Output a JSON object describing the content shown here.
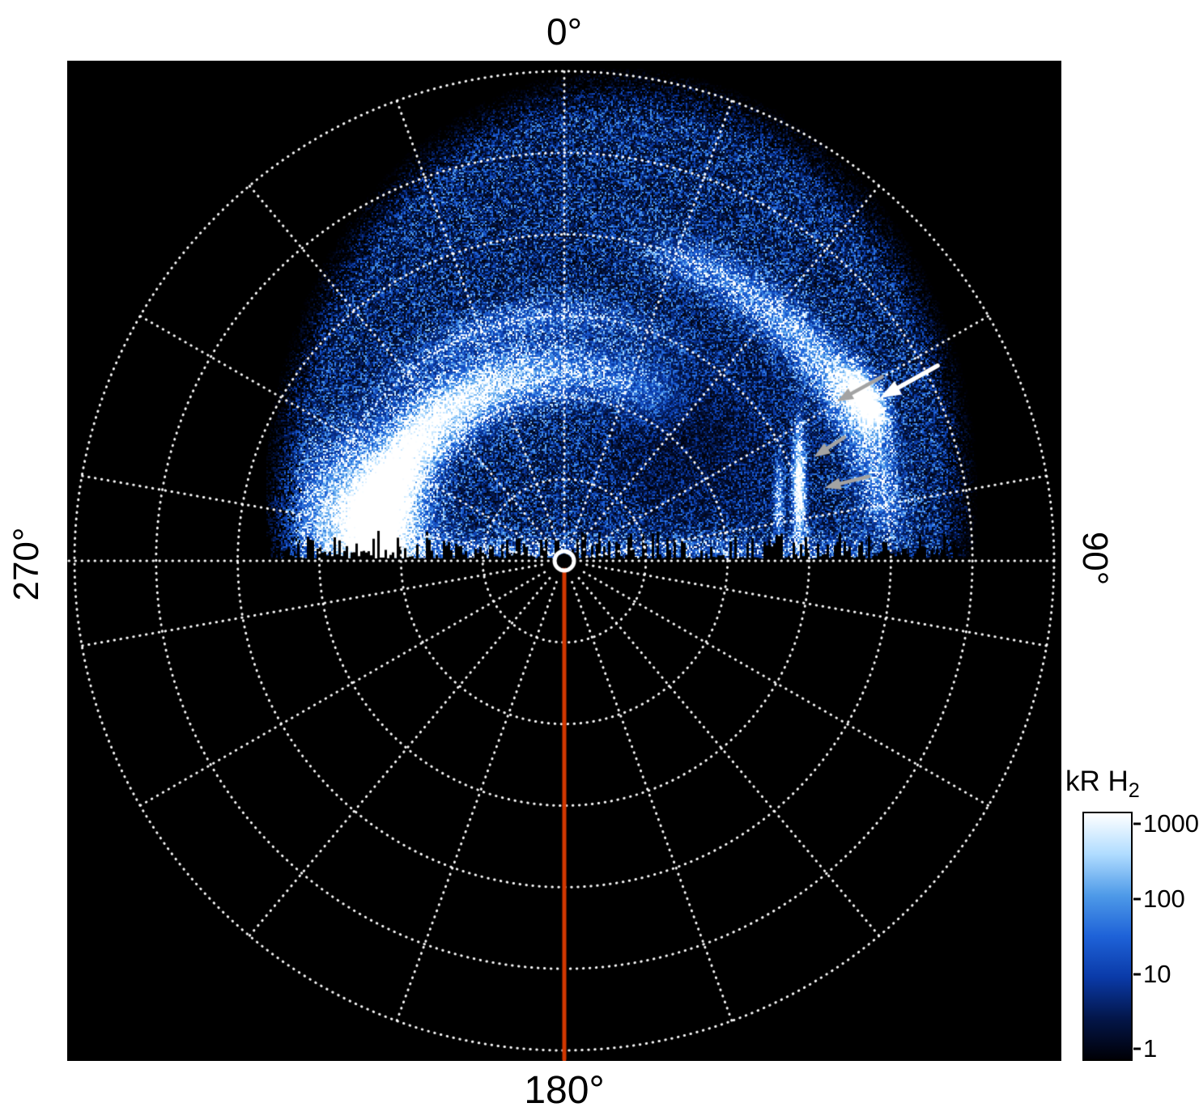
{
  "figure": {
    "angle_labels": {
      "top": "0°",
      "right": "90°",
      "bottom": "180°",
      "left": "270°"
    },
    "colorbar": {
      "title_main": "kR H",
      "title_sub": "2",
      "tick_labels": [
        "1000",
        "100",
        "10",
        "1"
      ]
    }
  },
  "chart_data": {
    "type": "heatmap",
    "projection": "polar",
    "title": "",
    "angle_tick_labels": [
      "0°",
      "90°",
      "180°",
      "270°"
    ],
    "grid": {
      "radial_circles": 6,
      "angular_step_deg": 20,
      "style": "dotted",
      "color": "#ffffff"
    },
    "colorbar": {
      "label": "kR H2",
      "scale": "log",
      "ticks": [
        1000,
        100,
        10,
        1
      ],
      "range_kR": [
        1,
        1000
      ],
      "colors": [
        "#000006",
        "#03164a",
        "#0a3aa8",
        "#1e62d8",
        "#4e9ae8",
        "#b0dcff",
        "#ffffff"
      ]
    },
    "coverage": {
      "description": "H2 auroral emission data fills the upper hemisphere only (azimuths ~270° through 0° to ~90°); lower half of the polar plot contains no data",
      "max_radius_frac": 1.0
    },
    "features": [
      {
        "name": "main-auroral-oval",
        "type": "arc",
        "radius_frac": 0.388,
        "azimuth_start_deg": -108,
        "azimuth_end_deg": 42,
        "peak_azimuth_deg": -55,
        "peak_intensity_kR": 1000
      },
      {
        "name": "bright-dawn-patch",
        "type": "patch",
        "azimuth_deg": -78,
        "radius_frac": 0.427,
        "peak_intensity_kR": 1000
      },
      {
        "name": "faint-poleward-arc",
        "type": "arc",
        "radius_frac": 0.504,
        "azimuth_start_deg": -45,
        "azimuth_end_deg": 20,
        "peak_intensity_kR": 100
      },
      {
        "name": "secondary-outer-arc",
        "type": "arc",
        "radius_frac": 0.661,
        "azimuth_start_deg": 10,
        "azimuth_end_deg": 92,
        "peak_azimuth_deg": 55,
        "peak_intensity_kR": 150
      },
      {
        "name": "bright-streak",
        "type": "streak",
        "azimuth_deg": 61.5,
        "radius_frac": 0.7,
        "peak_intensity_kR": 1000
      },
      {
        "name": "vertical-streak-pair",
        "type": "streak",
        "azimuth_deg": 74,
        "radius_frac": 0.5,
        "peak_intensity_kR": 700
      },
      {
        "name": "polar-diffuse-emission",
        "type": "diffuse",
        "radius_frac_range": [
          0,
          0.95
        ],
        "intensity_kR": 10
      }
    ],
    "annotations": {
      "arrows": [
        {
          "color": "#ffffff",
          "tail": {
            "azimuth_deg": 62.4,
            "radius_frac": 0.86
          },
          "head": {
            "azimuth_deg": 62.7,
            "radius_frac": 0.725
          }
        },
        {
          "color": "#a3a3a3",
          "tail": {
            "azimuth_deg": 59.9,
            "radius_frac": 0.75
          },
          "head": {
            "azimuth_deg": 59.7,
            "radius_frac": 0.645
          }
        },
        {
          "color": "#a3a3a3",
          "tail": {
            "azimuth_deg": 66.2,
            "radius_frac": 0.625
          },
          "head": {
            "azimuth_deg": 67.4,
            "radius_frac": 0.552
          }
        },
        {
          "color": "#a3a3a3",
          "tail": {
            "azimuth_deg": 74.5,
            "radius_frac": 0.645
          },
          "head": {
            "azimuth_deg": 74.3,
            "radius_frac": 0.552
          }
        }
      ]
    },
    "meridian_line": {
      "azimuth_deg": 180,
      "color": "#d23700"
    },
    "pole_marker": {
      "shape": "circle-outline",
      "color": "#ffffff"
    }
  }
}
